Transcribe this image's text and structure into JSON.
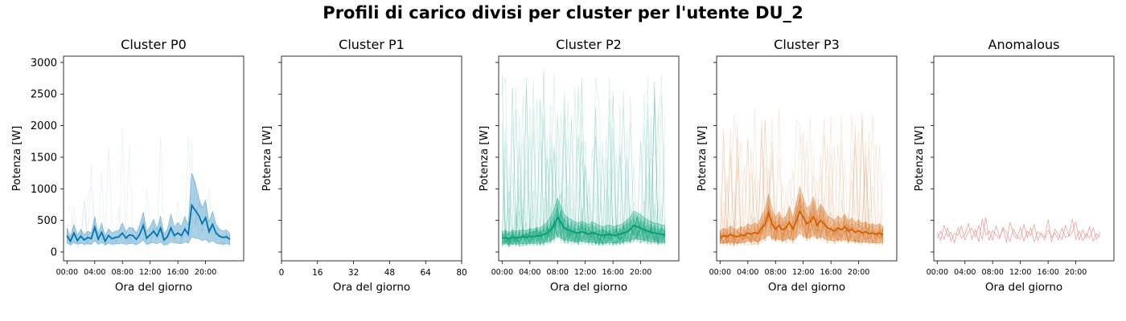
{
  "figure": {
    "title": "Profili di carico divisi per cluster per l'utente DU_2"
  },
  "colors": {
    "P0": "#0072B2",
    "P2": "#009E73",
    "P3": "#D55E00",
    "Anomalous": "#F08080"
  },
  "chart_data": [
    {
      "type": "line",
      "title": "Cluster P0",
      "xlabel": "Ora del giorno",
      "ylabel": "Potenza [W]",
      "xlim": [
        -0.5,
        25.5
      ],
      "ylim": [
        -140,
        3100
      ],
      "yticks": [
        0,
        500,
        1000,
        1500,
        2000,
        2500,
        3000
      ],
      "xticks": [
        0,
        4,
        8,
        12,
        16,
        20
      ],
      "xticklabels": [
        "00:00",
        "04:00",
        "08:00",
        "12:00",
        "16:00",
        "20:00"
      ],
      "x_hours": [
        0,
        0.5,
        1,
        1.5,
        2,
        2.5,
        3,
        3.5,
        4,
        4.5,
        5,
        5.5,
        6,
        6.5,
        7,
        7.5,
        8,
        8.5,
        9,
        9.5,
        10,
        10.5,
        11,
        11.5,
        12,
        12.5,
        13,
        13.5,
        14,
        14.5,
        15,
        15.5,
        16,
        16.5,
        17,
        17.5,
        18,
        18.5,
        19,
        19.5,
        20,
        20.5,
        21,
        21.5,
        22,
        22.5,
        23,
        23.5
      ],
      "series": [
        {
          "role": "mean",
          "values": [
            260,
            170,
            300,
            180,
            250,
            190,
            230,
            210,
            390,
            200,
            310,
            170,
            260,
            210,
            230,
            240,
            300,
            220,
            270,
            260,
            200,
            280,
            420,
            220,
            270,
            330,
            250,
            380,
            190,
            240,
            380,
            260,
            300,
            260,
            360,
            280,
            740,
            660,
            580,
            450,
            540,
            320,
            440,
            300,
            250,
            230,
            240,
            200
          ]
        },
        {
          "role": "band_low",
          "values": [
            140,
            110,
            150,
            120,
            140,
            120,
            130,
            120,
            180,
            120,
            150,
            110,
            140,
            120,
            130,
            130,
            140,
            120,
            130,
            140,
            110,
            150,
            190,
            120,
            140,
            150,
            130,
            160,
            110,
            120,
            160,
            140,
            140,
            130,
            160,
            140,
            240,
            220,
            210,
            180,
            200,
            150,
            180,
            140,
            130,
            120,
            130,
            120
          ]
        },
        {
          "role": "band_high",
          "values": [
            380,
            240,
            440,
            260,
            360,
            270,
            330,
            300,
            560,
            290,
            460,
            250,
            370,
            300,
            330,
            340,
            460,
            310,
            390,
            380,
            300,
            430,
            630,
            330,
            400,
            520,
            360,
            570,
            280,
            360,
            600,
            390,
            470,
            400,
            560,
            420,
            1250,
            1100,
            860,
            700,
            820,
            470,
            640,
            440,
            360,
            330,
            350,
            290
          ]
        }
      ],
      "individual_profile_count": 5,
      "individual_profile_max": 1950
    },
    {
      "type": "line",
      "title": "Cluster P1",
      "xlabel": "Ora del giorno",
      "ylabel": "Potenza [W]",
      "xlim": [
        0,
        80
      ],
      "ylim": [
        -140,
        3100
      ],
      "xticks": [
        0,
        16,
        32,
        48,
        64,
        80
      ],
      "xticklabels": [
        "0",
        "16",
        "32",
        "48",
        "64",
        "80"
      ],
      "series": []
    },
    {
      "type": "line",
      "title": "Cluster P2",
      "xlabel": "Ora del giorno",
      "ylabel": "Potenza [W]",
      "xlim": [
        -0.5,
        25.5
      ],
      "ylim": [
        -140,
        3100
      ],
      "xticks": [
        0,
        4,
        8,
        12,
        16,
        20
      ],
      "xticklabels": [
        "00:00",
        "04:00",
        "08:00",
        "12:00",
        "16:00",
        "20:00"
      ],
      "x_hours": [
        0,
        0.5,
        1,
        1.5,
        2,
        2.5,
        3,
        3.5,
        4,
        4.5,
        5,
        5.5,
        6,
        6.5,
        7,
        7.5,
        8,
        8.5,
        9,
        9.5,
        10,
        10.5,
        11,
        11.5,
        12,
        12.5,
        13,
        13.5,
        14,
        14.5,
        15,
        15.5,
        16,
        16.5,
        17,
        17.5,
        18,
        18.5,
        19,
        19.5,
        20,
        20.5,
        21,
        21.5,
        22,
        22.5,
        23,
        23.5
      ],
      "series": [
        {
          "role": "mean",
          "values": [
            220,
            230,
            210,
            240,
            220,
            230,
            240,
            230,
            250,
            240,
            260,
            250,
            280,
            300,
            350,
            420,
            550,
            460,
            380,
            350,
            330,
            310,
            300,
            320,
            300,
            280,
            310,
            290,
            270,
            260,
            270,
            280,
            260,
            270,
            280,
            300,
            320,
            360,
            420,
            400,
            380,
            350,
            330,
            310,
            300,
            290,
            280,
            270
          ]
        },
        {
          "role": "band_low",
          "values": [
            120,
            130,
            120,
            130,
            120,
            130,
            130,
            120,
            140,
            130,
            140,
            130,
            150,
            160,
            180,
            210,
            250,
            220,
            190,
            180,
            170,
            160,
            160,
            170,
            160,
            150,
            160,
            150,
            140,
            140,
            140,
            150,
            140,
            140,
            150,
            160,
            170,
            180,
            210,
            200,
            190,
            180,
            170,
            160,
            160,
            150,
            150,
            140
          ]
        },
        {
          "role": "band_high",
          "values": [
            330,
            340,
            310,
            350,
            330,
            340,
            350,
            340,
            370,
            360,
            390,
            380,
            430,
            470,
            560,
            680,
            850,
            720,
            590,
            540,
            510,
            480,
            460,
            490,
            460,
            430,
            480,
            450,
            420,
            400,
            420,
            430,
            400,
            420,
            430,
            460,
            500,
            560,
            650,
            620,
            590,
            540,
            510,
            480,
            460,
            450,
            430,
            420
          ]
        }
      ],
      "individual_profile_count": 60,
      "individual_profile_max": 2900
    },
    {
      "type": "line",
      "title": "Cluster P3",
      "xlabel": "Ora del giorno",
      "ylabel": "Potenza [W]",
      "xlim": [
        -0.5,
        25.5
      ],
      "ylim": [
        -140,
        3100
      ],
      "xticks": [
        0,
        4,
        8,
        12,
        16,
        20
      ],
      "xticklabels": [
        "00:00",
        "04:00",
        "08:00",
        "12:00",
        "16:00",
        "20:00"
      ],
      "x_hours": [
        0,
        0.5,
        1,
        1.5,
        2,
        2.5,
        3,
        3.5,
        4,
        4.5,
        5,
        5.5,
        6,
        6.5,
        7,
        7.5,
        8,
        8.5,
        9,
        9.5,
        10,
        10.5,
        11,
        11.5,
        12,
        12.5,
        13,
        13.5,
        14,
        14.5,
        15,
        15.5,
        16,
        16.5,
        17,
        17.5,
        18,
        18.5,
        19,
        19.5,
        20,
        20.5,
        21,
        21.5,
        22,
        22.5,
        23,
        23.5
      ],
      "series": [
        {
          "role": "mean",
          "values": [
            220,
            260,
            240,
            280,
            250,
            240,
            270,
            260,
            300,
            280,
            310,
            290,
            380,
            440,
            620,
            450,
            360,
            420,
            350,
            380,
            470,
            360,
            500,
            640,
            550,
            450,
            480,
            560,
            420,
            500,
            450,
            380,
            360,
            330,
            380,
            350,
            400,
            330,
            360,
            310,
            340,
            300,
            320,
            290,
            300,
            280,
            300,
            270
          ]
        },
        {
          "role": "band_low",
          "values": [
            130,
            150,
            140,
            160,
            140,
            140,
            150,
            150,
            170,
            160,
            170,
            160,
            200,
            220,
            280,
            220,
            190,
            210,
            180,
            190,
            230,
            180,
            240,
            300,
            260,
            220,
            230,
            270,
            210,
            240,
            220,
            190,
            180,
            170,
            190,
            180,
            200,
            170,
            180,
            160,
            170,
            150,
            160,
            150,
            150,
            140,
            150,
            140
          ]
        },
        {
          "role": "band_high",
          "values": [
            330,
            380,
            350,
            410,
            370,
            350,
            400,
            380,
            450,
            420,
            460,
            430,
            570,
            680,
            920,
            690,
            540,
            640,
            520,
            570,
            720,
            540,
            770,
            1030,
            860,
            690,
            730,
            870,
            630,
            760,
            680,
            570,
            540,
            490,
            570,
            520,
            600,
            490,
            540,
            460,
            510,
            450,
            480,
            430,
            450,
            420,
            450,
            400
          ]
        }
      ],
      "individual_profile_count": 35,
      "individual_profile_max": 2300
    },
    {
      "type": "line",
      "title": "Anomalous",
      "xlabel": "Ora del giorno",
      "ylabel": "Potenza [W]",
      "xlim": [
        -0.5,
        25.5
      ],
      "ylim": [
        -140,
        3100
      ],
      "xticks": [
        0,
        4,
        8,
        12,
        16,
        20
      ],
      "xticklabels": [
        "00:00",
        "04:00",
        "08:00",
        "12:00",
        "16:00",
        "20:00"
      ],
      "series": [
        {
          "role": "profile",
          "x_hours": [
            0,
            0.5,
            1,
            1.5,
            2,
            2.5,
            3,
            3.5,
            4,
            4.5,
            5,
            5.5,
            6,
            6.5,
            7,
            7.5,
            8,
            8.5,
            9,
            9.5,
            10,
            10.5,
            11,
            11.5,
            12,
            12.5,
            13,
            13.5,
            14,
            14.5,
            15,
            15.5,
            16,
            16.5,
            17,
            17.5,
            18,
            18.5,
            19,
            19.5,
            20,
            20.5,
            21,
            21.5,
            22,
            22.5,
            23,
            23.5
          ],
          "values": [
            300,
            180,
            420,
            250,
            310,
            140,
            390,
            220,
            280,
            450,
            200,
            350,
            160,
            520,
            270,
            330,
            190,
            410,
            240,
            360,
            150,
            470,
            280,
            210,
            390,
            170,
            330,
            260,
            440,
            180,
            300,
            230,
            510,
            160,
            360,
            270,
            200,
            420,
            250,
            310,
            480,
            190,
            350,
            220,
            400,
            170,
            290,
            230
          ]
        },
        {
          "role": "profile",
          "x_hours": [
            0,
            0.5,
            1,
            1.5,
            2,
            2.5,
            3,
            3.5,
            4,
            4.5,
            5,
            5.5,
            6,
            6.5,
            7,
            7.5,
            8,
            8.5,
            9,
            9.5,
            10,
            10.5,
            11,
            11.5,
            12,
            12.5,
            13,
            13.5,
            14,
            14.5,
            15,
            15.5,
            16,
            16.5,
            17,
            17.5,
            18,
            18.5,
            19,
            19.5,
            20,
            20.5,
            21,
            21.5,
            22,
            22.5,
            23,
            23.5
          ],
          "values": [
            220,
            330,
            200,
            380,
            170,
            300,
            260,
            410,
            190,
            320,
            380,
            240,
            420,
            200,
            550,
            180,
            340,
            270,
            210,
            390,
            300,
            170,
            360,
            250,
            200,
            440,
            230,
            380,
            160,
            320,
            270,
            190,
            350,
            230,
            300,
            190,
            380,
            230,
            260,
            520,
            200,
            330,
            180,
            290,
            220,
            380,
            200,
            310
          ]
        }
      ]
    }
  ]
}
